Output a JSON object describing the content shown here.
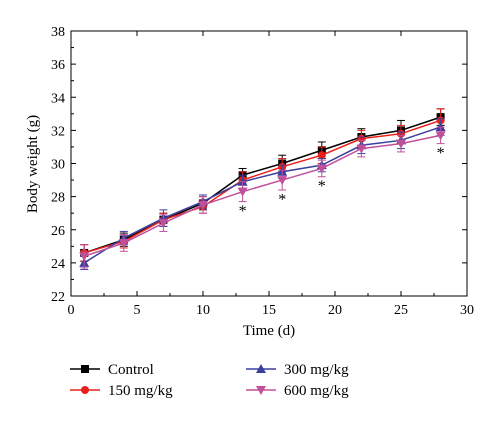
{
  "chart_data": {
    "type": "line",
    "title": "",
    "xlabel": "Time (d)",
    "ylabel": "Body weight (g)",
    "xlim": [
      0,
      30
    ],
    "ylim": [
      22,
      38
    ],
    "xticks": [
      0,
      5,
      10,
      15,
      20,
      25,
      30
    ],
    "yticks": [
      22,
      24,
      26,
      28,
      30,
      32,
      34,
      36,
      38
    ],
    "grid": false,
    "legend_position": "bottom",
    "x": [
      1,
      4,
      7,
      10,
      13,
      16,
      19,
      22,
      25,
      28
    ],
    "series": [
      {
        "name": "Control",
        "color": "#000000",
        "marker": "square",
        "values": [
          24.6,
          25.4,
          26.6,
          27.6,
          29.3,
          30.0,
          30.8,
          31.6,
          32.0,
          32.8
        ],
        "errors": [
          0.5,
          0.4,
          0.4,
          0.4,
          0.4,
          0.5,
          0.5,
          0.5,
          0.6,
          0.5
        ]
      },
      {
        "name": "150 mg/kg",
        "color": "#e8201a",
        "marker": "circle",
        "values": [
          24.6,
          25.3,
          26.6,
          27.4,
          29.0,
          29.8,
          30.5,
          31.5,
          31.8,
          32.6
        ],
        "errors": [
          0.5,
          0.4,
          0.4,
          0.4,
          0.5,
          0.5,
          0.5,
          0.5,
          0.5,
          0.7
        ]
      },
      {
        "name": "300 mg/kg",
        "color": "#3b3f9e",
        "marker": "triangle-up",
        "values": [
          24.0,
          25.5,
          26.7,
          27.7,
          28.9,
          29.5,
          29.9,
          31.1,
          31.4,
          32.2
        ],
        "errors": [
          0.4,
          0.4,
          0.5,
          0.4,
          0.4,
          0.4,
          0.4,
          0.5,
          0.5,
          0.5
        ]
      },
      {
        "name": "600 mg/kg",
        "color": "#c0509a",
        "marker": "triangle-down",
        "values": [
          24.4,
          25.2,
          26.4,
          27.5,
          28.3,
          29.0,
          29.7,
          30.9,
          31.2,
          31.7
        ],
        "errors": [
          0.7,
          0.5,
          0.5,
          0.5,
          0.6,
          0.6,
          0.5,
          0.5,
          0.5,
          0.5
        ]
      }
    ],
    "annotations": [
      {
        "text": "*",
        "x": 13,
        "y": 27.2
      },
      {
        "text": "*",
        "x": 16,
        "y": 27.9
      },
      {
        "text": "*",
        "x": 19,
        "y": 28.7
      },
      {
        "text": "*",
        "x": 28,
        "y": 30.7
      }
    ]
  }
}
